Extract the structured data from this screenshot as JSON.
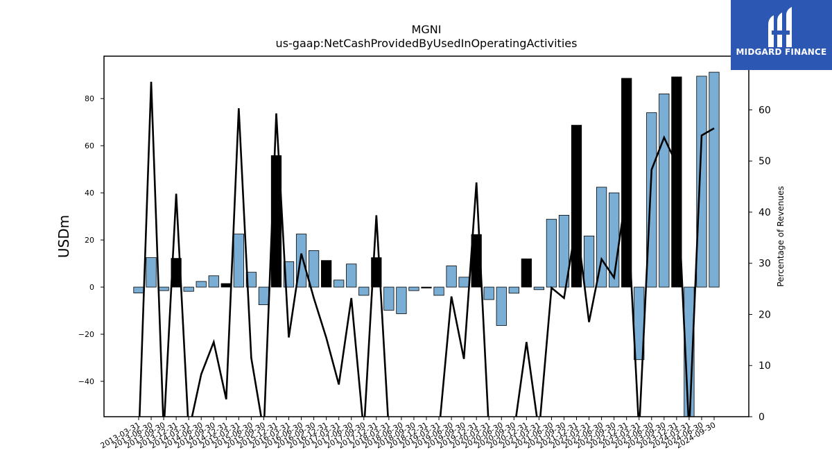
{
  "brand": {
    "name": "MIDGARD FINANCE",
    "color": "#2c58b4"
  },
  "chart_data": {
    "type": "bar",
    "title": "MGNI",
    "subtitle": "us-gaap:NetCashProvidedByUsedInOperatingActivities",
    "ylabel": "USDm",
    "y2label": "Percentage of Revenues",
    "ylim": [
      -55,
      98
    ],
    "y2lim": [
      0,
      70.5
    ],
    "yticks": [
      -40,
      -20,
      0,
      20,
      40,
      60,
      80
    ],
    "y2ticks": [
      0,
      10,
      20,
      30,
      40,
      50,
      60
    ],
    "colors": {
      "quarter_bar": "#7aaed4",
      "year_bar": "#000000",
      "line": "#000000"
    },
    "categories": [
      "2013-03-31",
      "2013-06-30",
      "2013-09-30",
      "2013-12-31",
      "2014-03-31",
      "2014-06-30",
      "2014-09-30",
      "2014-12-31",
      "2015-03-31",
      "2015-06-30",
      "2015-09-30",
      "2015-12-31",
      "2016-03-31",
      "2016-06-30",
      "2016-09-30",
      "2016-12-31",
      "2017-03-31",
      "2017-06-30",
      "2017-09-30",
      "2017-12-31",
      "2018-03-31",
      "2018-06-30",
      "2018-09-30",
      "2018-12-31",
      "2019-03-31",
      "2019-06-30",
      "2019-09-30",
      "2019-12-31",
      "2020-03-31",
      "2020-06-30",
      "2020-09-30",
      "2020-12-31",
      "2021-03-31",
      "2021-06-30",
      "2021-09-30",
      "2021-12-31",
      "2022-03-31",
      "2022-06-30",
      "2022-09-30",
      "2022-12-31",
      "2023-03-31",
      "2023-06-30",
      "2023-09-30",
      "2023-12-31",
      "2024-03-31",
      "2024-06-30",
      "2024-09-30"
    ],
    "series": [
      {
        "kind": "bar",
        "values": [
          -2.5,
          12.5,
          -1.5,
          12.2,
          -1.8,
          2.4,
          4.8,
          1.5,
          22.5,
          6.3,
          -7.5,
          55.8,
          10.8,
          22.5,
          15.5,
          11.3,
          3.0,
          9.8,
          -3.5,
          12.5,
          -9.8,
          -11.3,
          -1.5,
          -0.4,
          -3.5,
          9.0,
          4.2,
          22.3,
          -5.3,
          -16.3,
          -2.6,
          12.0,
          -1.1,
          28.8,
          30.5,
          68.7,
          21.7,
          42.4,
          40.0,
          88.6,
          -30.8,
          74.0,
          82.0,
          89.2,
          -55.0,
          89.5,
          91.2
        ],
        "annual": [
          false,
          false,
          false,
          true,
          false,
          false,
          false,
          true,
          false,
          false,
          false,
          true,
          false,
          false,
          false,
          true,
          false,
          false,
          false,
          true,
          false,
          false,
          false,
          true,
          false,
          false,
          false,
          true,
          false,
          false,
          false,
          true,
          false,
          false,
          false,
          true,
          false,
          false,
          false,
          true,
          false,
          false,
          false,
          true,
          false,
          false,
          false
        ]
      },
      {
        "kind": "line",
        "axis": "right",
        "values": [
          -5.0,
          65.5,
          -3.0,
          43.6,
          -3.0,
          8.3,
          14.6,
          3.4,
          60.3,
          11.5,
          -3.0,
          59.3,
          15.5,
          31.9,
          23.2,
          15.4,
          6.3,
          23.2,
          -3.0,
          39.4,
          -3.0,
          -3.0,
          -3.0,
          -3.0,
          -3.0,
          23.5,
          11.3,
          45.8,
          -3.0,
          -3.0,
          -3.0,
          14.6,
          -3.0,
          25.2,
          23.2,
          38.0,
          18.5,
          30.8,
          27.2,
          44.3,
          -3.0,
          48.3,
          54.6,
          49.4,
          -3.0,
          55.0,
          56.4
        ]
      }
    ]
  }
}
